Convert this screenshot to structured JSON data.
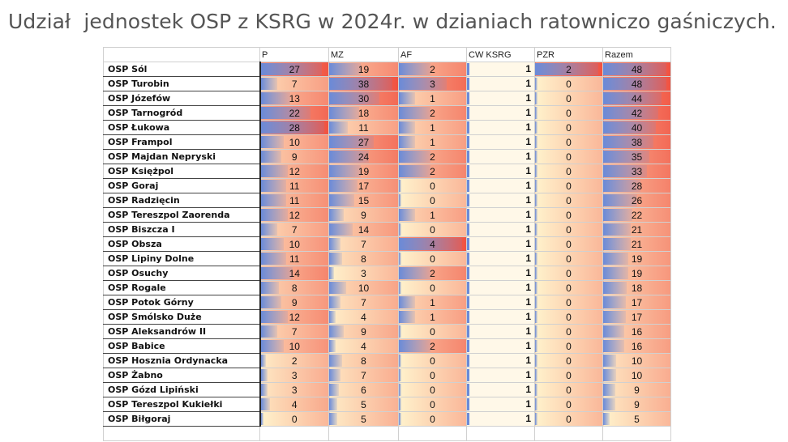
{
  "title": "Udział  jednostek OSP z KSRG w 2024r. w dzianiach ratowniczo gaśniczych.",
  "columns": [
    "",
    "P",
    "MZ",
    "AF",
    "CW KSRG",
    "PZR",
    "Razem"
  ],
  "rows": [
    {
      "name": "OSP Sól",
      "P": 27,
      "MZ": 19,
      "AF": 2,
      "CW": 1,
      "PZR": 2,
      "Razem": 48
    },
    {
      "name": "OSP Turobin",
      "P": 7,
      "MZ": 38,
      "AF": 3,
      "CW": 1,
      "PZR": 0,
      "Razem": 48
    },
    {
      "name": "OSP Józefów",
      "P": 13,
      "MZ": 30,
      "AF": 1,
      "CW": 1,
      "PZR": 0,
      "Razem": 44
    },
    {
      "name": "OSP Tarnogród",
      "P": 22,
      "MZ": 18,
      "AF": 2,
      "CW": 1,
      "PZR": 0,
      "Razem": 42
    },
    {
      "name": "OSP Łukowa",
      "P": 28,
      "MZ": 11,
      "AF": 1,
      "CW": 1,
      "PZR": 0,
      "Razem": 40
    },
    {
      "name": "OSP Frampol",
      "P": 10,
      "MZ": 27,
      "AF": 1,
      "CW": 1,
      "PZR": 0,
      "Razem": 38
    },
    {
      "name": "OSP Majdan Nepryski",
      "P": 9,
      "MZ": 24,
      "AF": 2,
      "CW": 1,
      "PZR": 0,
      "Razem": 35
    },
    {
      "name": "OSP Księżpol",
      "P": 12,
      "MZ": 19,
      "AF": 2,
      "CW": 1,
      "PZR": 0,
      "Razem": 33
    },
    {
      "name": "OSP Goraj",
      "P": 11,
      "MZ": 17,
      "AF": 0,
      "CW": 1,
      "PZR": 0,
      "Razem": 28
    },
    {
      "name": "OSP Radzięcin",
      "P": 11,
      "MZ": 15,
      "AF": 0,
      "CW": 1,
      "PZR": 0,
      "Razem": 26
    },
    {
      "name": "OSP Tereszpol Zaorenda",
      "P": 12,
      "MZ": 9,
      "AF": 1,
      "CW": 1,
      "PZR": 0,
      "Razem": 22
    },
    {
      "name": "OSP Biszcza I",
      "P": 7,
      "MZ": 14,
      "AF": 0,
      "CW": 1,
      "PZR": 0,
      "Razem": 21
    },
    {
      "name": "OSP Obsza",
      "P": 10,
      "MZ": 7,
      "AF": 4,
      "CW": 1,
      "PZR": 0,
      "Razem": 21
    },
    {
      "name": "OSP Lipiny Dolne",
      "P": 11,
      "MZ": 8,
      "AF": 0,
      "CW": 1,
      "PZR": 0,
      "Razem": 19
    },
    {
      "name": "OSP Osuchy",
      "P": 14,
      "MZ": 3,
      "AF": 2,
      "CW": 1,
      "PZR": 0,
      "Razem": 19
    },
    {
      "name": "OSP Rogale",
      "P": 8,
      "MZ": 10,
      "AF": 0,
      "CW": 1,
      "PZR": 0,
      "Razem": 18
    },
    {
      "name": "OSP Potok Górny",
      "P": 9,
      "MZ": 7,
      "AF": 1,
      "CW": 1,
      "PZR": 0,
      "Razem": 17
    },
    {
      "name": "OSP Smólsko Duże",
      "P": 12,
      "MZ": 4,
      "AF": 1,
      "CW": 1,
      "PZR": 0,
      "Razem": 17
    },
    {
      "name": "OSP Aleksandrów II",
      "P": 7,
      "MZ": 9,
      "AF": 0,
      "CW": 1,
      "PZR": 0,
      "Razem": 16
    },
    {
      "name": "OSP Babice",
      "P": 10,
      "MZ": 4,
      "AF": 2,
      "CW": 1,
      "PZR": 0,
      "Razem": 16
    },
    {
      "name": "OSP Hosznia Ordynacka",
      "P": 2,
      "MZ": 8,
      "AF": 0,
      "CW": 1,
      "PZR": 0,
      "Razem": 10
    },
    {
      "name": "OSP Żabno",
      "P": 3,
      "MZ": 7,
      "AF": 0,
      "CW": 1,
      "PZR": 0,
      "Razem": 10
    },
    {
      "name": "OSP Gózd  Lipiński",
      "P": 3,
      "MZ": 6,
      "AF": 0,
      "CW": 1,
      "PZR": 0,
      "Razem": 9
    },
    {
      "name": "OSP Tereszpol Kukiełki",
      "P": 4,
      "MZ": 5,
      "AF": 0,
      "CW": 1,
      "PZR": 0,
      "Razem": 9
    },
    {
      "name": "OSP Biłgoraj",
      "P": 0,
      "MZ": 5,
      "AF": 0,
      "CW": 1,
      "PZR": 0,
      "Razem": 5
    }
  ],
  "colors": {
    "bar_blue": "#6a8ad8",
    "scale_red": "#f04a3a",
    "scale_yellow": "#fff2cc"
  }
}
